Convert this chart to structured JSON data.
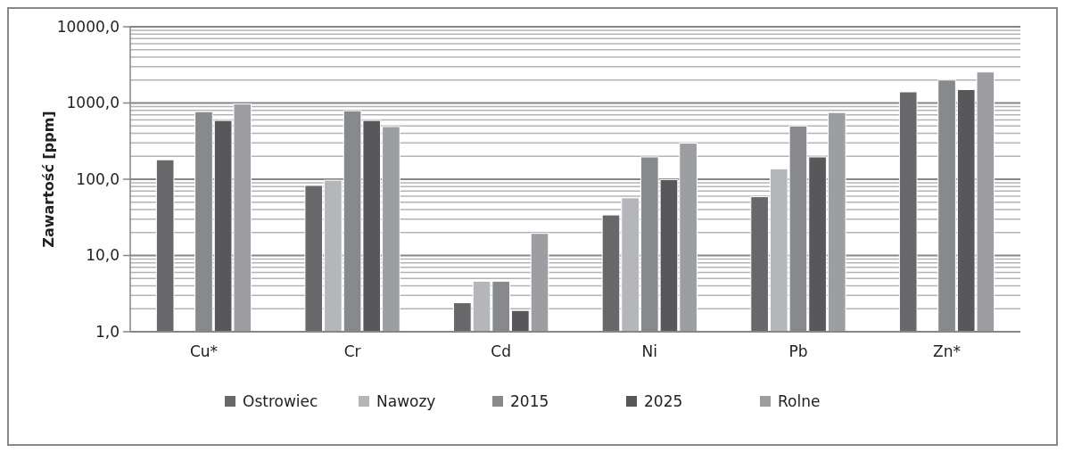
{
  "chart_data": {
    "type": "bar",
    "ylabel": "Zawartość [ppm]",
    "categories": [
      "Cu*",
      "Cr",
      "Cd",
      "Ni",
      "Pb",
      "Zn*"
    ],
    "series": [
      {
        "name": "Ostrowiec",
        "color": "#68686b",
        "values": [
          180,
          83,
          2.4,
          34,
          59,
          1400
        ]
      },
      {
        "name": "Nawozy",
        "color": "#b5b6b9",
        "values": [
          null,
          97,
          4.6,
          57,
          137,
          null
        ]
      },
      {
        "name": "2015",
        "color": "#88898c",
        "values": [
          770,
          790,
          4.6,
          196,
          500,
          2000
        ]
      },
      {
        "name": "2025",
        "color": "#58585b",
        "values": [
          590,
          590,
          1.9,
          99,
          196,
          1500
        ]
      },
      {
        "name": "Rolne",
        "color": "#9d9ea1",
        "values": [
          970,
          490,
          19.5,
          297,
          750,
          2550
        ]
      }
    ],
    "log": "y",
    "ylim": [
      1,
      10000
    ],
    "yticks": [
      {
        "value": 1,
        "label": "1,0"
      },
      {
        "value": 10,
        "label": "10,0"
      },
      {
        "value": 100,
        "label": "100,0"
      },
      {
        "value": 1000,
        "label": "1000,0"
      },
      {
        "value": 10000,
        "label": "10000,0"
      }
    ],
    "grid": "y",
    "legend": "bottom"
  }
}
